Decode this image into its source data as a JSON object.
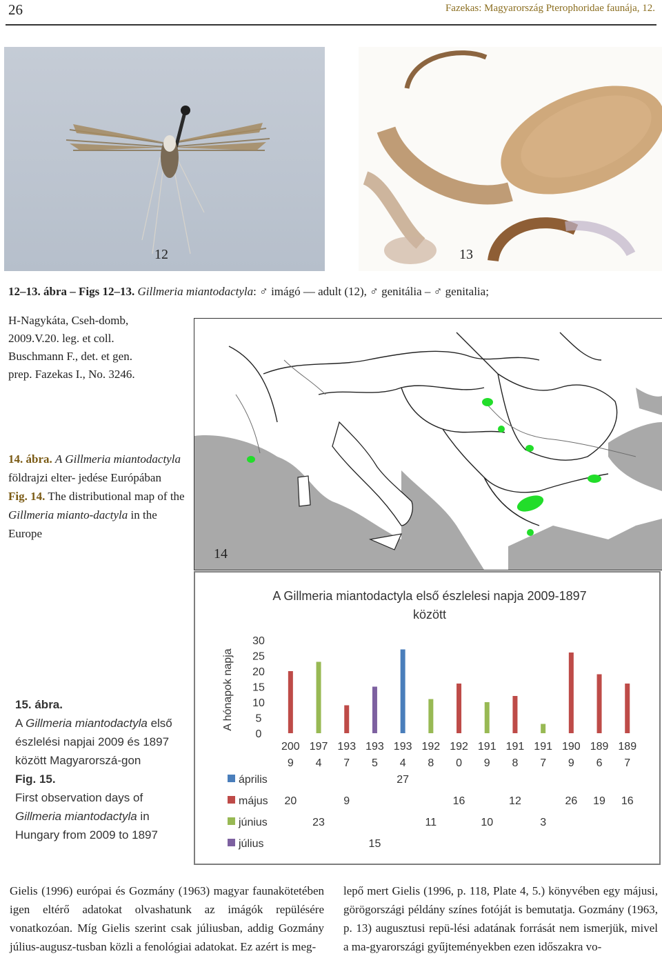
{
  "header": {
    "page_number": "26",
    "running_title": "Fazekas: Magyarország Pterophoridae faunája, 12."
  },
  "figures": {
    "fig12_label": "12",
    "fig13_label": "13",
    "fig14_label": "14",
    "caption_1213": {
      "lead": "12–13. ábra – Figs 12–13.",
      "species": "Gillmeria miantodactyla",
      "rest": ": ♂ imágó — adult (12), ♂ genitália – ♂ genitalia;"
    },
    "specimen_lines": [
      "H-Nagykáta, Cseh-domb,",
      "2009.V.20. leg. et coll.",
      "Buschmann F., det. et gen.",
      "prep. Fazekas I., No. 3246."
    ],
    "caption_14": {
      "hu_lead": "14. ábra.",
      "hu_species": "A Gillmeria miantodactyla",
      "hu_rest_1": "földrajzi elter-",
      "hu_rest_2": "jedése Európában",
      "en_lead": "Fig. 14.",
      "en_text": "The distributional map of the",
      "en_species": "Gillmeria mianto-dactyla",
      "en_tail": "in the Europe"
    },
    "caption_15": {
      "hu_lead": "15. ábra.",
      "hu_species": "Gillmeria miantodactyla",
      "hu_prefix": "A",
      "hu_rest": "első észlelési napjai 2009 és 1897 között Magyarorszá-gon",
      "en_lead": "Fig. 15.",
      "en_text": "First observation days of",
      "en_species": "Gillmeria miantodactyla",
      "en_tail": "in Hungary  from 2009 to 1897"
    }
  },
  "chart_data": {
    "type": "bar",
    "title_line1": "A Gillmeria miantodactyla  első észlelesi napja 2009-1897",
    "title_line2": "között",
    "ylabel": "A hónapok napja",
    "ylim": [
      0,
      30
    ],
    "yticks": [
      "30",
      "25",
      "20",
      "15",
      "10",
      "5",
      "0"
    ],
    "categories": [
      [
        "200",
        "9"
      ],
      [
        "197",
        "4"
      ],
      [
        "193",
        "7"
      ],
      [
        "193",
        "5"
      ],
      [
        "193",
        "4"
      ],
      [
        "192",
        "8"
      ],
      [
        "192",
        "0"
      ],
      [
        "191",
        "9"
      ],
      [
        "191",
        "8"
      ],
      [
        "191",
        "7"
      ],
      [
        "190",
        "9"
      ],
      [
        "189",
        "6"
      ],
      [
        "189",
        "7"
      ]
    ],
    "series": [
      {
        "name": "április",
        "color": "#4a7ebb",
        "values": [
          null,
          null,
          null,
          null,
          27,
          null,
          null,
          null,
          null,
          null,
          null,
          null,
          null
        ]
      },
      {
        "name": "május",
        "color": "#be4b48",
        "values": [
          20,
          null,
          9,
          null,
          null,
          null,
          16,
          null,
          12,
          null,
          26,
          19,
          16
        ]
      },
      {
        "name": "június",
        "color": "#98b954",
        "values": [
          null,
          23,
          null,
          null,
          null,
          11,
          null,
          10,
          null,
          3,
          null,
          null,
          null
        ]
      },
      {
        "name": "július",
        "color": "#7d60a0",
        "values": [
          null,
          null,
          null,
          15,
          null,
          null,
          null,
          null,
          null,
          null,
          null,
          null,
          null
        ]
      }
    ],
    "grid": false
  },
  "body_text": {
    "left_column": "Gielis (1996) európai és Gozmány (1963) magyar faunakötetében igen eltérő adatokat olvashatunk az imágók repülésére vonatkozóan. Míg Gielis szerint csak júliusban, addig Gozmány július-augusz-tusban közli a fenológiai adatokat. Ez azért is meg-",
    "right_column": "lepő mert Gielis (1996, p. 118, Plate 4, 5.) könyvében egy májusi, görögországi példány színes fotóját is bemutatja. Gozmány (1963, p. 13) augusztusi repü-lési adatának forrását nem ismerjük, mivel a ma-gyarországi gyűjteményekben ezen időszakra vo-"
  }
}
